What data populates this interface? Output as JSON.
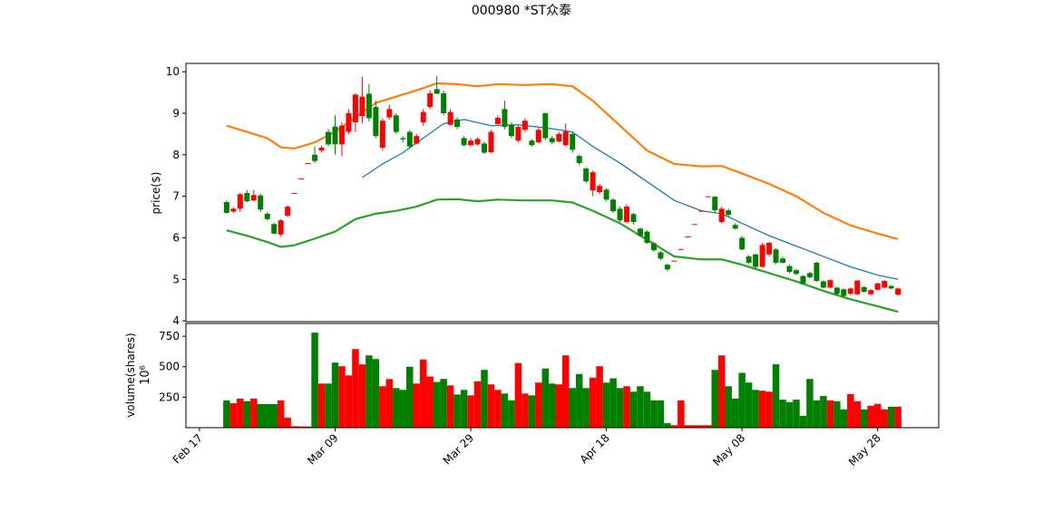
{
  "chart_data": {
    "type": "candlestick",
    "title": "000980  *ST众泰",
    "ylabel": "price($)",
    "volume_label": "volume(shares)",
    "volume_offset": "10⁶",
    "up_color": "#ff0000",
    "down_color": "#008000",
    "xlim": [
      "Feb 15",
      "Jun 06"
    ],
    "xticks": [
      "Feb 17",
      "Mar 09",
      "Mar 29",
      "Apr 18",
      "May 08",
      "May 28"
    ],
    "ylim": [
      3.98,
      10.2
    ],
    "yticks": [
      4,
      5,
      6,
      7,
      8,
      9,
      10
    ],
    "volume_ylim": [
      0,
      855
    ],
    "volume_yticks": [
      250,
      500,
      750
    ],
    "x": [
      "Feb 21",
      "Feb 22",
      "Feb 23",
      "Feb 24",
      "Feb 25",
      "Feb 26",
      "Feb 27",
      "Feb 28",
      "Mar 01",
      "Mar 02",
      "Mar 03",
      "Mar 04",
      "Mar 05",
      "Mar 06",
      "Mar 07",
      "Mar 08",
      "Mar 09",
      "Mar 10",
      "Mar 11",
      "Mar 12",
      "Mar 13",
      "Mar 14",
      "Mar 15",
      "Mar 16",
      "Mar 17",
      "Mar 18",
      "Mar 19",
      "Mar 20",
      "Mar 21",
      "Mar 22",
      "Mar 23",
      "Mar 24",
      "Mar 25",
      "Mar 26",
      "Mar 27",
      "Mar 28",
      "Mar 29",
      "Mar 30",
      "Mar 31",
      "Apr 01",
      "Apr 02",
      "Apr 03",
      "Apr 04",
      "Apr 05",
      "Apr 06",
      "Apr 07",
      "Apr 08",
      "Apr 09",
      "Apr 10",
      "Apr 11",
      "Apr 12",
      "Apr 13",
      "Apr 14",
      "Apr 15",
      "Apr 16",
      "Apr 17",
      "Apr 18",
      "Apr 19",
      "Apr 20",
      "Apr 21",
      "Apr 22",
      "Apr 23",
      "Apr 24",
      "Apr 25",
      "Apr 26",
      "Apr 27",
      "Apr 28",
      "Apr 29",
      "Apr 30",
      "May 01",
      "May 02",
      "May 03",
      "May 04",
      "May 05",
      "May 06",
      "May 07",
      "May 08",
      "May 09",
      "May 10",
      "May 11",
      "May 12",
      "May 13",
      "May 14",
      "May 15",
      "May 16",
      "May 17",
      "May 18",
      "May 19",
      "May 20",
      "May 21",
      "May 22",
      "May 23",
      "May 24",
      "May 25",
      "May 26",
      "May 27",
      "May 28",
      "May 29",
      "May 30",
      "May 31"
    ],
    "open": [
      6.86,
      6.63,
      6.7,
      7.08,
      6.9,
      7.02,
      6.58,
      6.33,
      6.08,
      6.53,
      7.08,
      7.43,
      7.8,
      8.0,
      8.1,
      8.55,
      8.68,
      8.25,
      8.55,
      8.78,
      8.93,
      9.47,
      9.15,
      8.17,
      8.9,
      8.95,
      8.4,
      8.55,
      8.27,
      8.78,
      9.15,
      9.58,
      9.48,
      8.72,
      8.85,
      8.4,
      8.23,
      8.25,
      8.27,
      8.06,
      8.74,
      9.1,
      8.73,
      8.34,
      8.6,
      8.34,
      8.3,
      9.0,
      8.4,
      8.32,
      8.23,
      8.5,
      7.97,
      7.67,
      7.14,
      7.1,
      7.16,
      6.92,
      6.7,
      6.38,
      6.57,
      6.22,
      6.15,
      5.87,
      5.65,
      5.35,
      5.45,
      5.73,
      6.03,
      6.33,
      6.65,
      7.0,
      6.99,
      6.38,
      6.66,
      6.31,
      6.0,
      5.55,
      5.6,
      5.3,
      5.6,
      5.72,
      5.5,
      5.32,
      5.22,
      5.08,
      5.15,
      5.4,
      4.95,
      4.8,
      4.8,
      4.76,
      4.65,
      4.64,
      4.81,
      4.64,
      4.75,
      4.8,
      4.84,
      4.63
    ],
    "high": [
      6.9,
      6.74,
      7.08,
      7.15,
      7.15,
      7.06,
      6.62,
      6.36,
      6.45,
      6.78,
      7.08,
      7.43,
      7.8,
      8.2,
      8.22,
      8.62,
      8.95,
      8.78,
      9.1,
      9.48,
      9.88,
      9.7,
      9.3,
      8.88,
      9.2,
      9.0,
      8.45,
      8.6,
      8.5,
      9.1,
      9.55,
      9.9,
      9.55,
      9.1,
      8.9,
      8.45,
      8.4,
      8.42,
      8.32,
      8.6,
      8.95,
      9.3,
      8.78,
      8.7,
      8.88,
      8.38,
      8.65,
      9.02,
      8.45,
      8.55,
      8.75,
      8.55,
      8.0,
      7.7,
      7.62,
      7.3,
      7.2,
      6.95,
      6.75,
      6.8,
      6.6,
      6.25,
      6.18,
      5.9,
      5.68,
      5.38,
      5.45,
      5.73,
      6.03,
      6.33,
      6.65,
      7.0,
      7.0,
      6.75,
      6.7,
      6.35,
      6.05,
      5.58,
      5.62,
      5.88,
      5.9,
      5.75,
      5.55,
      5.35,
      5.25,
      5.1,
      5.18,
      5.42,
      4.98,
      5.0,
      4.82,
      4.78,
      4.8,
      4.98,
      4.84,
      4.76,
      4.92,
      4.98,
      4.86,
      4.8
    ],
    "low": [
      6.58,
      6.6,
      6.62,
      6.85,
      6.88,
      6.62,
      6.42,
      6.08,
      6.02,
      6.5,
      7.08,
      7.43,
      7.8,
      7.8,
      8.05,
      8.2,
      8.0,
      7.97,
      8.5,
      8.55,
      8.75,
      8.8,
      8.4,
      8.1,
      8.85,
      8.5,
      8.3,
      8.15,
      8.25,
      8.7,
      9.1,
      9.45,
      8.95,
      8.7,
      8.62,
      8.2,
      8.2,
      8.22,
      8.02,
      8.04,
      8.7,
      8.62,
      8.4,
      8.3,
      8.55,
      8.2,
      8.28,
      8.35,
      8.25,
      8.3,
      8.2,
      8.05,
      7.75,
      7.32,
      7.0,
      7.05,
      6.88,
      6.6,
      6.38,
      6.35,
      6.32,
      6.02,
      5.85,
      5.66,
      5.46,
      5.2,
      5.45,
      5.73,
      6.03,
      6.33,
      6.65,
      7.0,
      6.62,
      6.35,
      6.5,
      6.2,
      5.7,
      5.36,
      5.25,
      5.28,
      5.55,
      5.36,
      5.38,
      5.15,
      5.1,
      4.88,
      5.02,
      4.94,
      4.78,
      4.78,
      4.62,
      4.58,
      4.62,
      4.62,
      4.68,
      4.62,
      4.72,
      4.78,
      4.76,
      4.6
    ],
    "close": [
      6.6,
      6.7,
      7.05,
      6.88,
      7.03,
      6.68,
      6.45,
      6.1,
      6.42,
      6.75,
      7.08,
      7.43,
      7.8,
      7.85,
      8.17,
      8.25,
      8.25,
      8.7,
      9.0,
      9.45,
      9.4,
      8.88,
      8.45,
      8.82,
      9.1,
      8.55,
      8.37,
      8.2,
      8.45,
      9.03,
      9.48,
      9.47,
      9.0,
      9.03,
      8.67,
      8.23,
      8.34,
      8.38,
      8.05,
      8.55,
      8.89,
      8.67,
      8.45,
      8.67,
      8.82,
      8.23,
      8.6,
      8.4,
      8.3,
      8.5,
      8.56,
      8.12,
      7.8,
      7.36,
      7.58,
      7.25,
      6.92,
      6.64,
      6.42,
      6.75,
      6.38,
      6.05,
      5.88,
      5.7,
      5.5,
      5.24,
      5.45,
      5.73,
      6.03,
      6.33,
      6.65,
      7.0,
      6.66,
      6.7,
      6.55,
      6.22,
      5.72,
      5.4,
      5.3,
      5.83,
      5.88,
      5.4,
      5.4,
      5.18,
      5.13,
      4.9,
      5.05,
      4.96,
      4.8,
      4.98,
      4.65,
      4.6,
      4.78,
      4.97,
      4.7,
      4.74,
      4.9,
      4.96,
      4.78,
      4.78
    ],
    "volume": [
      224,
      200,
      239,
      217,
      239,
      194,
      194,
      194,
      224,
      82,
      12,
      10,
      10,
      780,
      362,
      362,
      534,
      504,
      429,
      645,
      519,
      593,
      563,
      340,
      399,
      325,
      310,
      500,
      362,
      560,
      420,
      375,
      400,
      347,
      272,
      310,
      265,
      380,
      474,
      355,
      310,
      280,
      224,
      530,
      280,
      265,
      370,
      485,
      362,
      355,
      593,
      325,
      440,
      325,
      410,
      504,
      370,
      405,
      325,
      340,
      295,
      340,
      295,
      224,
      224,
      37,
      20,
      224,
      20,
      20,
      20,
      20,
      474,
      593,
      340,
      239,
      450,
      370,
      310,
      303,
      295,
      520,
      230,
      210,
      230,
      97,
      400,
      224,
      260,
      224,
      217,
      150,
      275,
      217,
      150,
      180,
      195,
      150,
      172,
      172
    ],
    "series": [
      {
        "color": "#ff7f0e",
        "x": [
          "Feb 21",
          "Feb 24",
          "Feb 27",
          "Mar 01",
          "Mar 03",
          "Mar 06",
          "Mar 09",
          "Mar 12",
          "Mar 15",
          "Mar 18",
          "Mar 21",
          "Mar 24",
          "Mar 27",
          "Mar 30",
          "Apr 02",
          "Apr 06",
          "Apr 10",
          "Apr 13",
          "Apr 16",
          "Apr 20",
          "Apr 24",
          "Apr 28",
          "May 02",
          "May 05",
          "May 08",
          "May 12",
          "May 16",
          "May 20",
          "May 24",
          "May 28",
          "May 31"
        ],
        "values": [
          8.7,
          8.55,
          8.4,
          8.18,
          8.15,
          8.3,
          8.55,
          8.9,
          9.25,
          9.4,
          9.55,
          9.72,
          9.7,
          9.65,
          9.7,
          9.68,
          9.7,
          9.65,
          9.3,
          8.7,
          8.1,
          7.78,
          7.72,
          7.73,
          7.55,
          7.3,
          7.0,
          6.6,
          6.3,
          6.1,
          5.97
        ]
      },
      {
        "color": "#1f77b4",
        "x": [
          "Mar 13",
          "Mar 16",
          "Mar 19",
          "Mar 22",
          "Mar 25",
          "Mar 28",
          "Apr 01",
          "Apr 05",
          "Apr 09",
          "Apr 13",
          "Apr 16",
          "Apr 20",
          "Apr 24",
          "Apr 28",
          "May 02",
          "May 05",
          "May 08",
          "May 12",
          "May 16",
          "May 20",
          "May 24",
          "May 28",
          "May 31"
        ],
        "values": [
          7.45,
          7.78,
          8.05,
          8.4,
          8.75,
          8.85,
          8.7,
          8.72,
          8.65,
          8.55,
          8.2,
          7.8,
          7.35,
          6.9,
          6.65,
          6.58,
          6.35,
          6.05,
          5.8,
          5.55,
          5.3,
          5.1,
          5.0
        ]
      },
      {
        "color": "#2ca02c",
        "x": [
          "Feb 21",
          "Feb 24",
          "Feb 27",
          "Mar 01",
          "Mar 03",
          "Mar 06",
          "Mar 09",
          "Mar 12",
          "Mar 15",
          "Mar 18",
          "Mar 21",
          "Mar 24",
          "Mar 27",
          "Mar 30",
          "Apr 02",
          "Apr 06",
          "Apr 10",
          "Apr 13",
          "Apr 16",
          "Apr 20",
          "Apr 24",
          "Apr 28",
          "May 02",
          "May 05",
          "May 08",
          "May 12",
          "May 16",
          "May 20",
          "May 24",
          "May 28",
          "May 31"
        ],
        "values": [
          6.18,
          6.05,
          5.9,
          5.78,
          5.82,
          5.98,
          6.15,
          6.45,
          6.58,
          6.65,
          6.75,
          6.92,
          6.93,
          6.88,
          6.92,
          6.9,
          6.9,
          6.85,
          6.65,
          6.35,
          5.95,
          5.55,
          5.48,
          5.48,
          5.35,
          5.15,
          4.95,
          4.72,
          4.52,
          4.35,
          4.22
        ]
      }
    ]
  }
}
